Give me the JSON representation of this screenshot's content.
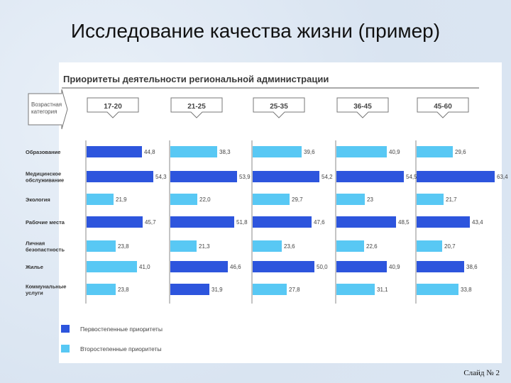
{
  "slide": {
    "title": "Исследование качества жизни (пример)",
    "number": "Слайд № 2"
  },
  "colors": {
    "primary": "#2d55dd",
    "secondary": "#58c8f4",
    "text": "#3a3a3a",
    "header": "#3a3a3a"
  },
  "chart_data": {
    "type": "bar",
    "orientation": "horizontal",
    "title": "Приоритеты деятельности региональной администрации",
    "group_label": "Возрастная категория",
    "groups": [
      "17-20",
      "21-25",
      "25-35",
      "36-45",
      "45-60"
    ],
    "categories": [
      "Образование",
      "Медицинское обслуживание",
      "Экология",
      "Рабочие места",
      "Личная безопастность",
      "Жилье",
      "Коммунальные услуги"
    ],
    "values": [
      [
        "44,8",
        "38,3",
        "39,6",
        "40,9",
        "29,6"
      ],
      [
        "54,3",
        "53,9",
        "54,2",
        "54,5",
        "63,4"
      ],
      [
        "21,9",
        "22,0",
        "29,7",
        "23",
        "21,7"
      ],
      [
        "45,7",
        "51,8",
        "47,6",
        "48,5",
        "43,4"
      ],
      [
        "23,8",
        "21,3",
        "23,6",
        "22,6",
        "20,7"
      ],
      [
        "41,0",
        "46,6",
        "50,0",
        "40,9",
        "38,6"
      ],
      [
        "23,8",
        "31,9",
        "27,8",
        "31,1",
        "33,8"
      ]
    ],
    "priority": [
      [
        "primary",
        "secondary",
        "secondary",
        "secondary",
        "secondary"
      ],
      [
        "primary",
        "primary",
        "primary",
        "primary",
        "primary"
      ],
      [
        "secondary",
        "secondary",
        "secondary",
        "secondary",
        "secondary"
      ],
      [
        "primary",
        "primary",
        "primary",
        "primary",
        "primary"
      ],
      [
        "secondary",
        "secondary",
        "secondary",
        "secondary",
        "secondary"
      ],
      [
        "secondary",
        "primary",
        "primary",
        "primary",
        "primary"
      ],
      [
        "secondary",
        "primary",
        "secondary",
        "secondary",
        "secondary"
      ]
    ],
    "legend": [
      {
        "key": "primary",
        "label": "Первостепенные приоритеты"
      },
      {
        "key": "secondary",
        "label": "Второстепенные приоритеты"
      }
    ],
    "legend_position": "bottom-left",
    "grid": false
  }
}
